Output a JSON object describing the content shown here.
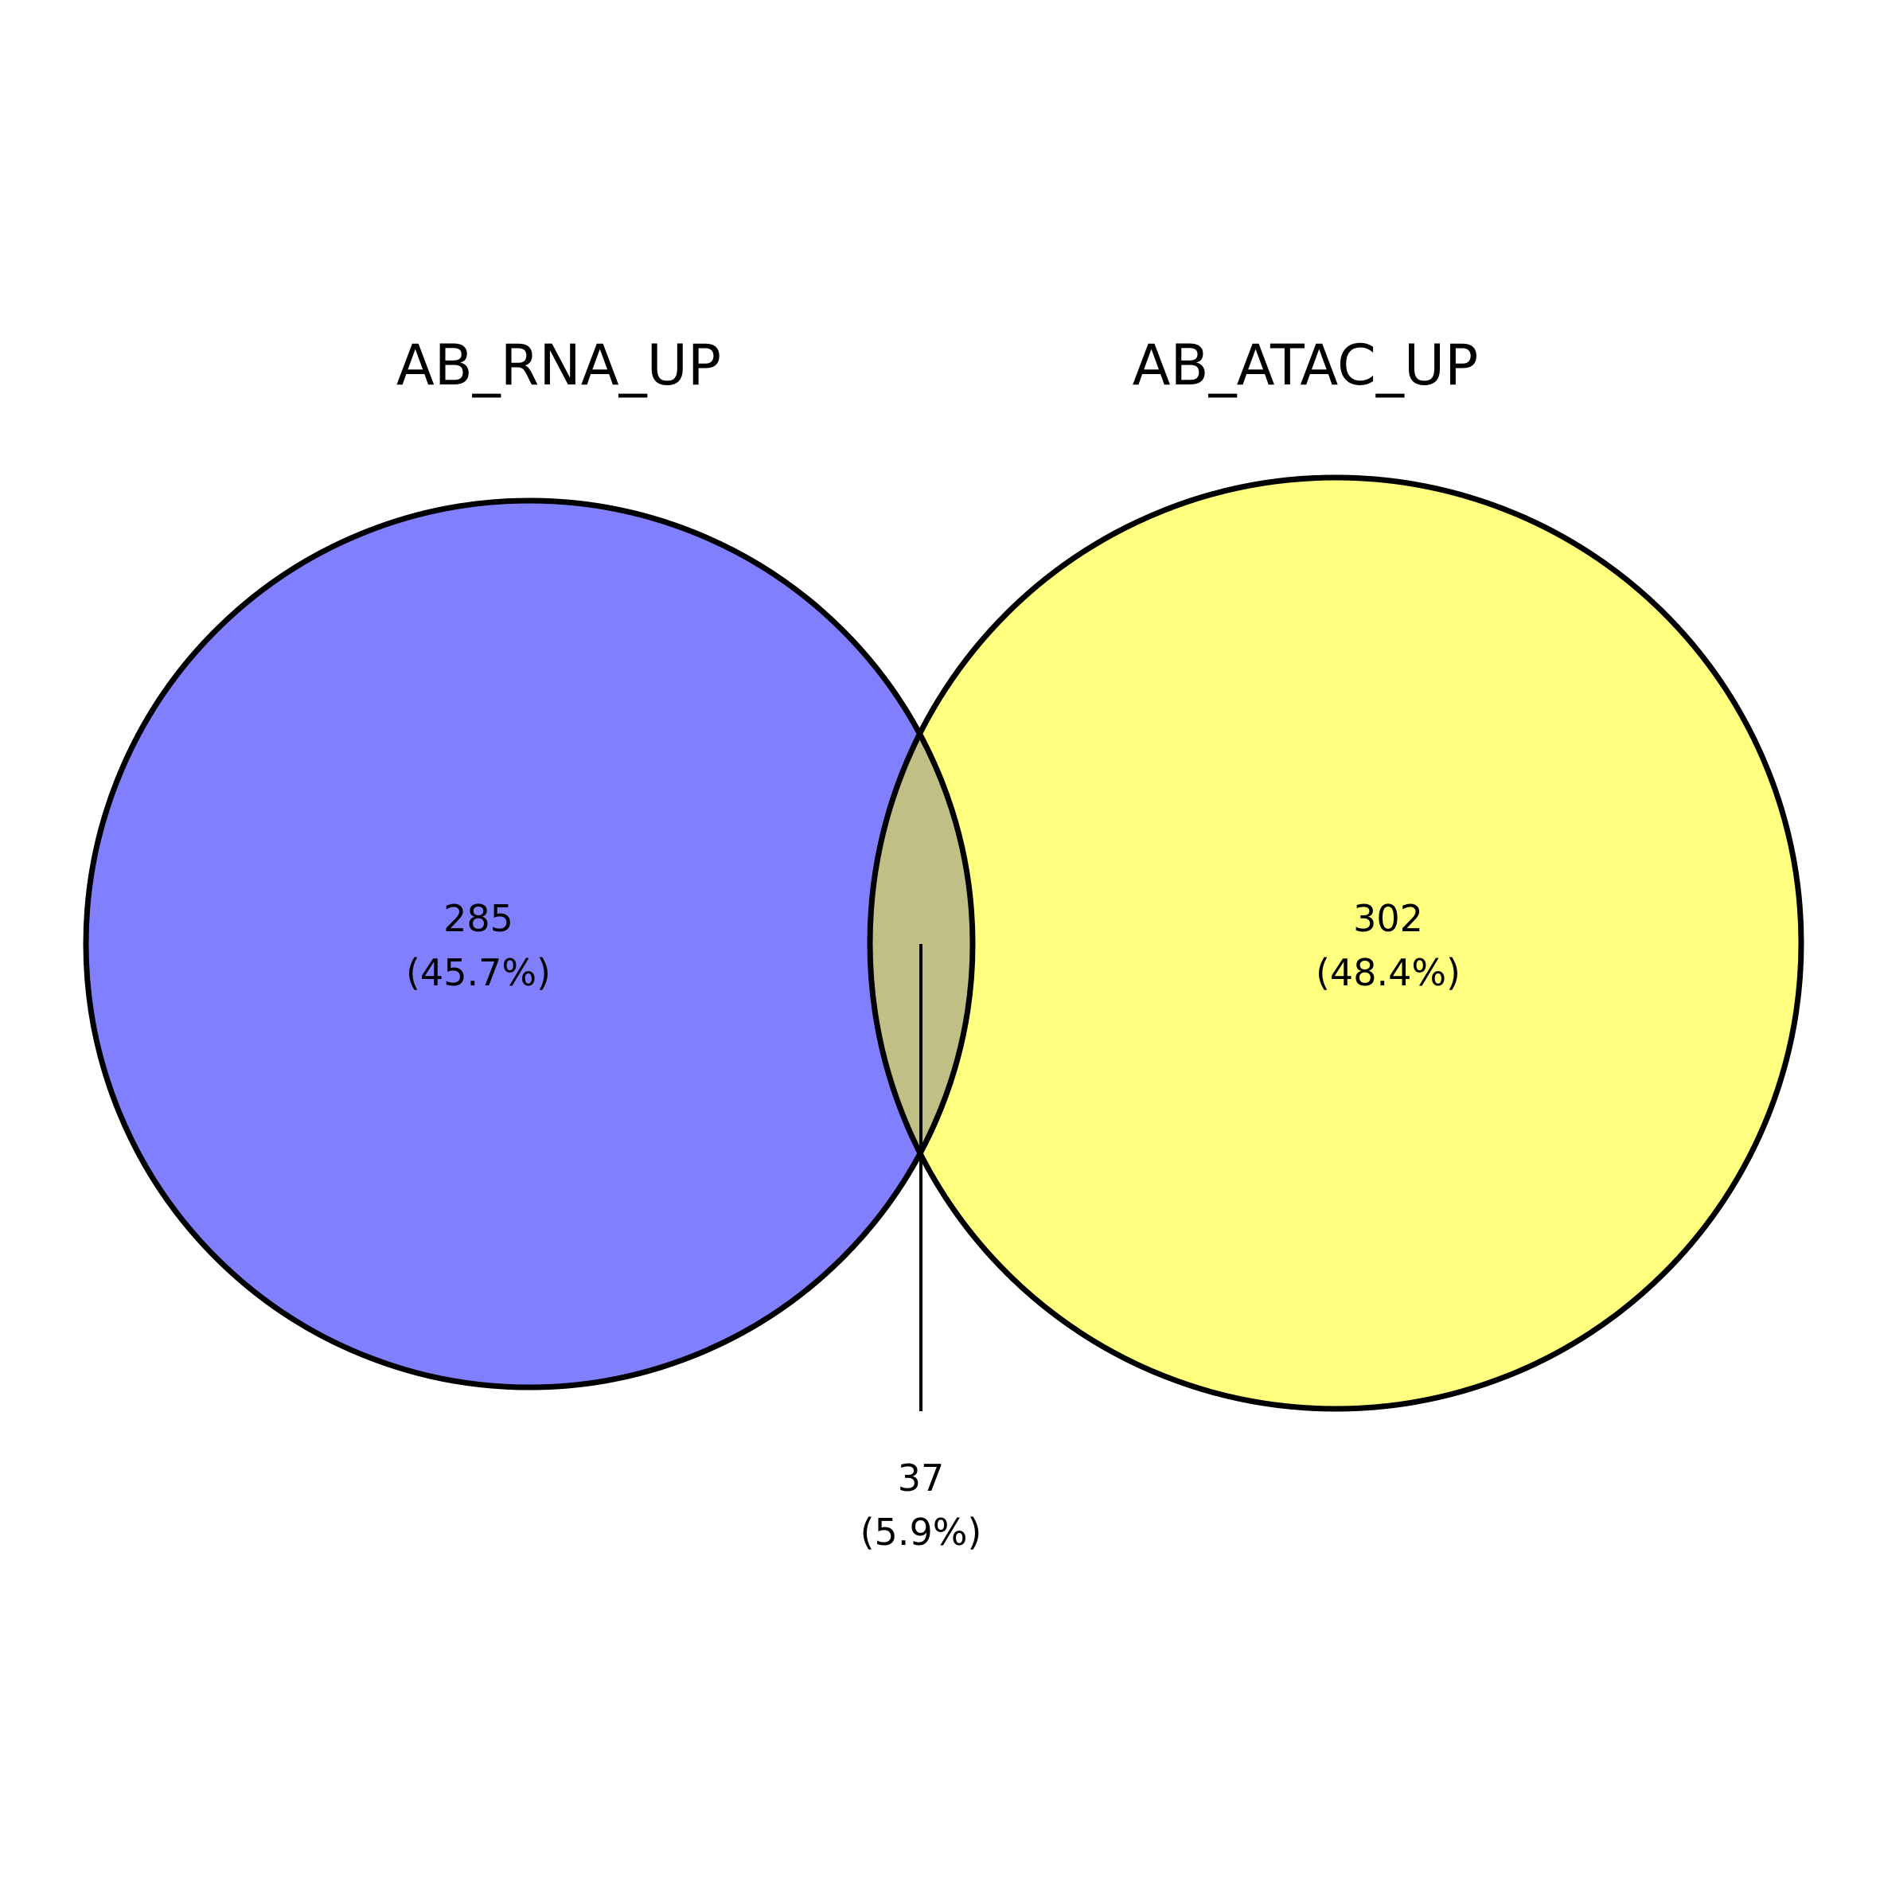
{
  "chart_data": {
    "type": "venn",
    "sets": [
      {
        "name": "AB_RNA_UP",
        "color": "#8080ff"
      },
      {
        "name": "AB_ATAC_UP",
        "color": "#ffff80"
      }
    ],
    "regions": [
      {
        "id": "rna_only",
        "count": "285",
        "percent": "(45.7%)"
      },
      {
        "id": "atac_only",
        "count": "302",
        "percent": "(48.4%)"
      },
      {
        "id": "intersection",
        "count": "37",
        "percent": "(5.9%)",
        "color": "#bfbf86"
      }
    ],
    "values": {
      "rna_only": 285,
      "atac_only": 302,
      "intersection": 37
    }
  }
}
